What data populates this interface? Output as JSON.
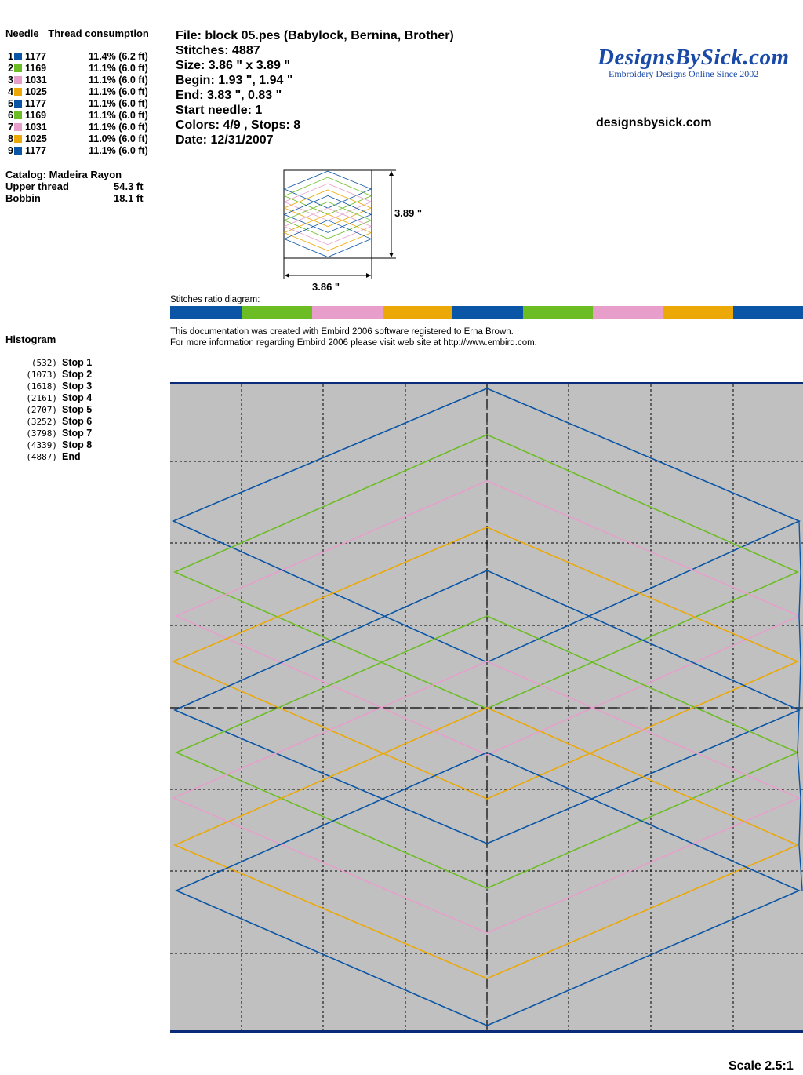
{
  "header": {
    "needle_label": "Needle",
    "thread_label": "Thread consumption"
  },
  "needles": [
    {
      "num": "1",
      "code": "1177",
      "pct": "11.4% (6.2 ft)",
      "color": "#0a55a5"
    },
    {
      "num": "2",
      "code": "1169",
      "pct": "11.1% (6.0 ft)",
      "color": "#6cbd24"
    },
    {
      "num": "3",
      "code": "1031",
      "pct": "11.1% (6.0 ft)",
      "color": "#e79ecb"
    },
    {
      "num": "4",
      "code": "1025",
      "pct": "11.1% (6.0 ft)",
      "color": "#eca806"
    },
    {
      "num": "5",
      "code": "1177",
      "pct": "11.1% (6.0 ft)",
      "color": "#0a55a5"
    },
    {
      "num": "6",
      "code": "1169",
      "pct": "11.1% (6.0 ft)",
      "color": "#6cbd24"
    },
    {
      "num": "7",
      "code": "1031",
      "pct": "11.1% (6.0 ft)",
      "color": "#e79ecb"
    },
    {
      "num": "8",
      "code": "1025",
      "pct": "11.0% (6.0 ft)",
      "color": "#eca806"
    },
    {
      "num": "9",
      "code": "1177",
      "pct": "11.1% (6.0 ft)",
      "color": "#0a55a5"
    }
  ],
  "catalog": {
    "title": "Catalog: Madeira Rayon",
    "upper_label": "Upper thread",
    "upper_value": "54.3 ft",
    "bobbin_label": "Bobbin",
    "bobbin_value": "18.1 ft"
  },
  "file_info": {
    "file": "File: block 05.pes  (Babylock, Bernina, Brother)",
    "stitches": "Stitches: 4887",
    "size": "Size: 3.86 \" x 3.89 \"",
    "begin": "Begin: 1.93 \", 1.94 \"",
    "end": "End: 3.83 \", 0.83 \"",
    "start_needle": "Start needle: 1",
    "colors": "Colors: 4/9 , Stops: 8",
    "date": "Date: 12/31/2007"
  },
  "logo": {
    "name": "DesignsBySick.com",
    "tagline": "Embroidery Designs Online Since 2002"
  },
  "site_url": "designsbysick.com",
  "dimensions": {
    "height_label": "3.89 \"",
    "width_label": "3.86 \""
  },
  "ratio": {
    "label": "Stitches ratio diagram:",
    "segments": [
      {
        "color": "#0a55a5",
        "share": 11.4
      },
      {
        "color": "#6cbd24",
        "share": 11.1
      },
      {
        "color": "#e79ecb",
        "share": 11.1
      },
      {
        "color": "#eca806",
        "share": 11.1
      },
      {
        "color": "#0a55a5",
        "share": 11.1
      },
      {
        "color": "#6cbd24",
        "share": 11.1
      },
      {
        "color": "#e79ecb",
        "share": 11.1
      },
      {
        "color": "#eca806",
        "share": 11.0
      },
      {
        "color": "#0a55a5",
        "share": 11.1
      }
    ]
  },
  "doc_note": {
    "line1": "This documentation was created with Embird 2006 software registered to Erna Brown.",
    "line2": "For more information regarding Embird 2006 please visit web site at http://www.embird.com."
  },
  "histogram": {
    "title": "Histogram",
    "rows": [
      {
        "count": "(532)",
        "label": "Stop 1"
      },
      {
        "count": "(1073)",
        "label": "Stop 2"
      },
      {
        "count": "(1618)",
        "label": "Stop 3"
      },
      {
        "count": "(2161)",
        "label": "Stop 4"
      },
      {
        "count": "(2707)",
        "label": "Stop 5"
      },
      {
        "count": "(3252)",
        "label": "Stop 6"
      },
      {
        "count": "(3798)",
        "label": "Stop 7"
      },
      {
        "count": "(4339)",
        "label": "Stop 8"
      },
      {
        "count": "(4887)",
        "label": "End"
      }
    ]
  },
  "scale": "Scale 2.5:1",
  "colors": {
    "canvas_bg": "#c0c0c0",
    "frame": "#0a2a7a"
  }
}
